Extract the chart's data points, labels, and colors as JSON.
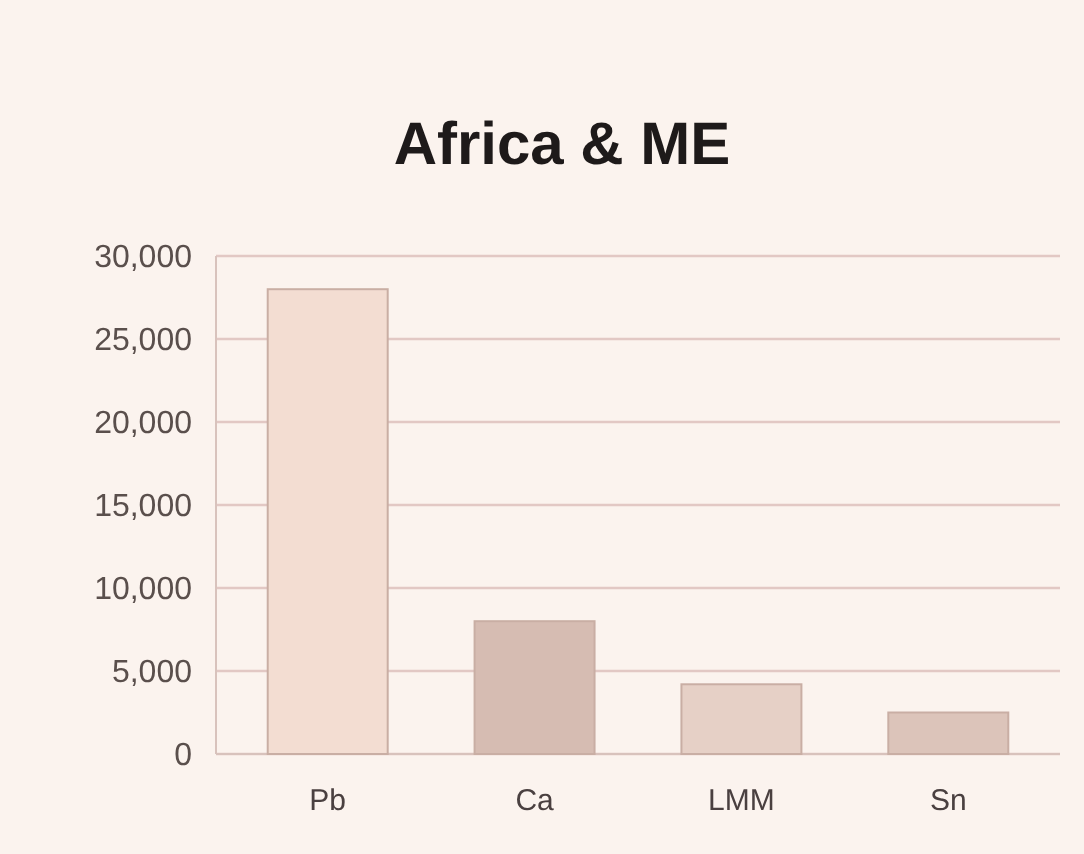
{
  "chart_data": {
    "type": "bar",
    "title": "Africa & ME",
    "categories": [
      "Pb",
      "Ca",
      "LMM",
      "Sn"
    ],
    "values": [
      28000,
      8000,
      4200,
      2500
    ],
    "colors": [
      "#f3ddd2",
      "#d6bcb2",
      "#e6d0c6",
      "#dcc4ba"
    ],
    "ylim": [
      0,
      30000
    ],
    "yticks": [
      {
        "value": 0,
        "label": "0"
      },
      {
        "value": 5000,
        "label": "5,000"
      },
      {
        "value": 10000,
        "label": "10,000"
      },
      {
        "value": 15000,
        "label": "15,000"
      },
      {
        "value": 20000,
        "label": "20,000"
      },
      {
        "value": 25000,
        "label": "25,000"
      },
      {
        "value": 30000,
        "label": "30,000"
      }
    ],
    "grid": "y"
  }
}
